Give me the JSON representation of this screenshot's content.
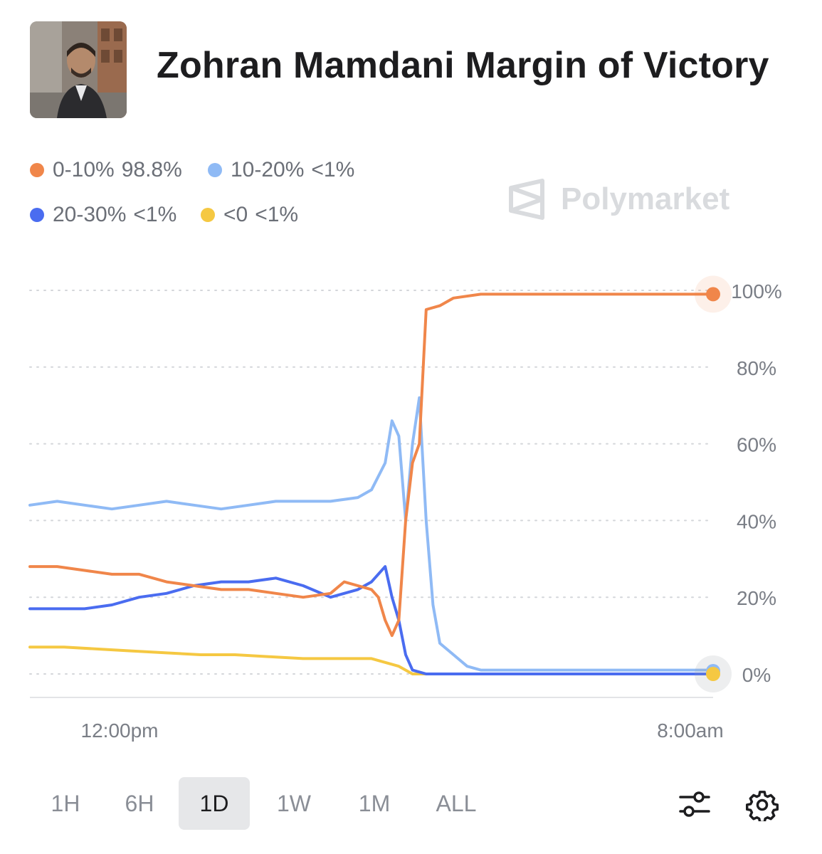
{
  "header": {
    "title": "Zohran Mamdani Margin of Victory"
  },
  "legend": [
    {
      "label": "0-10%",
      "value": "98.8%",
      "color": "#f0864a"
    },
    {
      "label": "10-20%",
      "value": "<1%",
      "color": "#8fbaf5"
    },
    {
      "label": "20-30%",
      "value": "<1%",
      "color": "#4a6cf0"
    },
    {
      "label": "<0",
      "value": "<1%",
      "color": "#f5c842"
    }
  ],
  "watermark": {
    "text": "Polymarket",
    "icon": "polymarket-logo-icon"
  },
  "controls": {
    "ranges": [
      "1H",
      "6H",
      "1D",
      "1W",
      "1M",
      "ALL"
    ],
    "active_range": "1D",
    "icons": [
      "sliders-icon",
      "gear-icon"
    ]
  },
  "chart_data": {
    "type": "line",
    "ylim": [
      0,
      100
    ],
    "y_ticks": [
      "100%",
      "80%",
      "60%",
      "40%",
      "20%",
      "0%"
    ],
    "y_tick_values": [
      100,
      80,
      60,
      40,
      20,
      0
    ],
    "x_tick_labels": [
      "12:00pm",
      "8:00am"
    ],
    "grid": true,
    "series": [
      {
        "name": "0-10%",
        "color": "#f0864a",
        "points": [
          [
            0,
            28
          ],
          [
            4,
            28
          ],
          [
            8,
            27
          ],
          [
            12,
            26
          ],
          [
            16,
            26
          ],
          [
            20,
            24
          ],
          [
            24,
            23
          ],
          [
            28,
            22
          ],
          [
            32,
            22
          ],
          [
            36,
            21
          ],
          [
            40,
            20
          ],
          [
            44,
            21
          ],
          [
            46,
            24
          ],
          [
            48,
            23
          ],
          [
            50,
            22
          ],
          [
            51,
            20
          ],
          [
            52,
            14
          ],
          [
            53,
            10
          ],
          [
            54,
            14
          ],
          [
            55,
            40
          ],
          [
            56,
            55
          ],
          [
            57,
            60
          ],
          [
            58,
            95
          ],
          [
            60,
            96
          ],
          [
            62,
            98
          ],
          [
            66,
            99
          ],
          [
            70,
            99
          ],
          [
            80,
            99
          ],
          [
            90,
            99
          ],
          [
            100,
            99
          ]
        ]
      },
      {
        "name": "10-20%",
        "color": "#8fbaf5",
        "points": [
          [
            0,
            44
          ],
          [
            4,
            45
          ],
          [
            8,
            44
          ],
          [
            12,
            43
          ],
          [
            16,
            44
          ],
          [
            20,
            45
          ],
          [
            24,
            44
          ],
          [
            28,
            43
          ],
          [
            32,
            44
          ],
          [
            36,
            45
          ],
          [
            40,
            45
          ],
          [
            44,
            45
          ],
          [
            48,
            46
          ],
          [
            50,
            48
          ],
          [
            52,
            55
          ],
          [
            53,
            66
          ],
          [
            54,
            62
          ],
          [
            55,
            40
          ],
          [
            56,
            60
          ],
          [
            57,
            72
          ],
          [
            58,
            40
          ],
          [
            59,
            18
          ],
          [
            60,
            8
          ],
          [
            62,
            5
          ],
          [
            64,
            2
          ],
          [
            66,
            1
          ],
          [
            70,
            1
          ],
          [
            80,
            1
          ],
          [
            90,
            1
          ],
          [
            100,
            1
          ]
        ]
      },
      {
        "name": "20-30%",
        "color": "#4a6cf0",
        "points": [
          [
            0,
            17
          ],
          [
            4,
            17
          ],
          [
            8,
            17
          ],
          [
            12,
            18
          ],
          [
            16,
            20
          ],
          [
            20,
            21
          ],
          [
            24,
            23
          ],
          [
            28,
            24
          ],
          [
            32,
            24
          ],
          [
            36,
            25
          ],
          [
            40,
            23
          ],
          [
            44,
            20
          ],
          [
            48,
            22
          ],
          [
            50,
            24
          ],
          [
            52,
            28
          ],
          [
            53,
            20
          ],
          [
            54,
            14
          ],
          [
            55,
            5
          ],
          [
            56,
            1
          ],
          [
            58,
            0
          ],
          [
            60,
            0
          ],
          [
            70,
            0
          ],
          [
            80,
            0
          ],
          [
            90,
            0
          ],
          [
            100,
            0
          ]
        ]
      },
      {
        "name": "<0",
        "color": "#f5c842",
        "points": [
          [
            0,
            7
          ],
          [
            5,
            7
          ],
          [
            10,
            6.5
          ],
          [
            15,
            6
          ],
          [
            20,
            5.5
          ],
          [
            25,
            5
          ],
          [
            30,
            5
          ],
          [
            35,
            4.5
          ],
          [
            40,
            4
          ],
          [
            45,
            4
          ],
          [
            50,
            4
          ],
          [
            52,
            3
          ],
          [
            54,
            2
          ],
          [
            55,
            1
          ],
          [
            56,
            0
          ],
          [
            60,
            0
          ],
          [
            70,
            0
          ],
          [
            80,
            0
          ],
          [
            90,
            0
          ],
          [
            100,
            0
          ]
        ]
      }
    ]
  }
}
